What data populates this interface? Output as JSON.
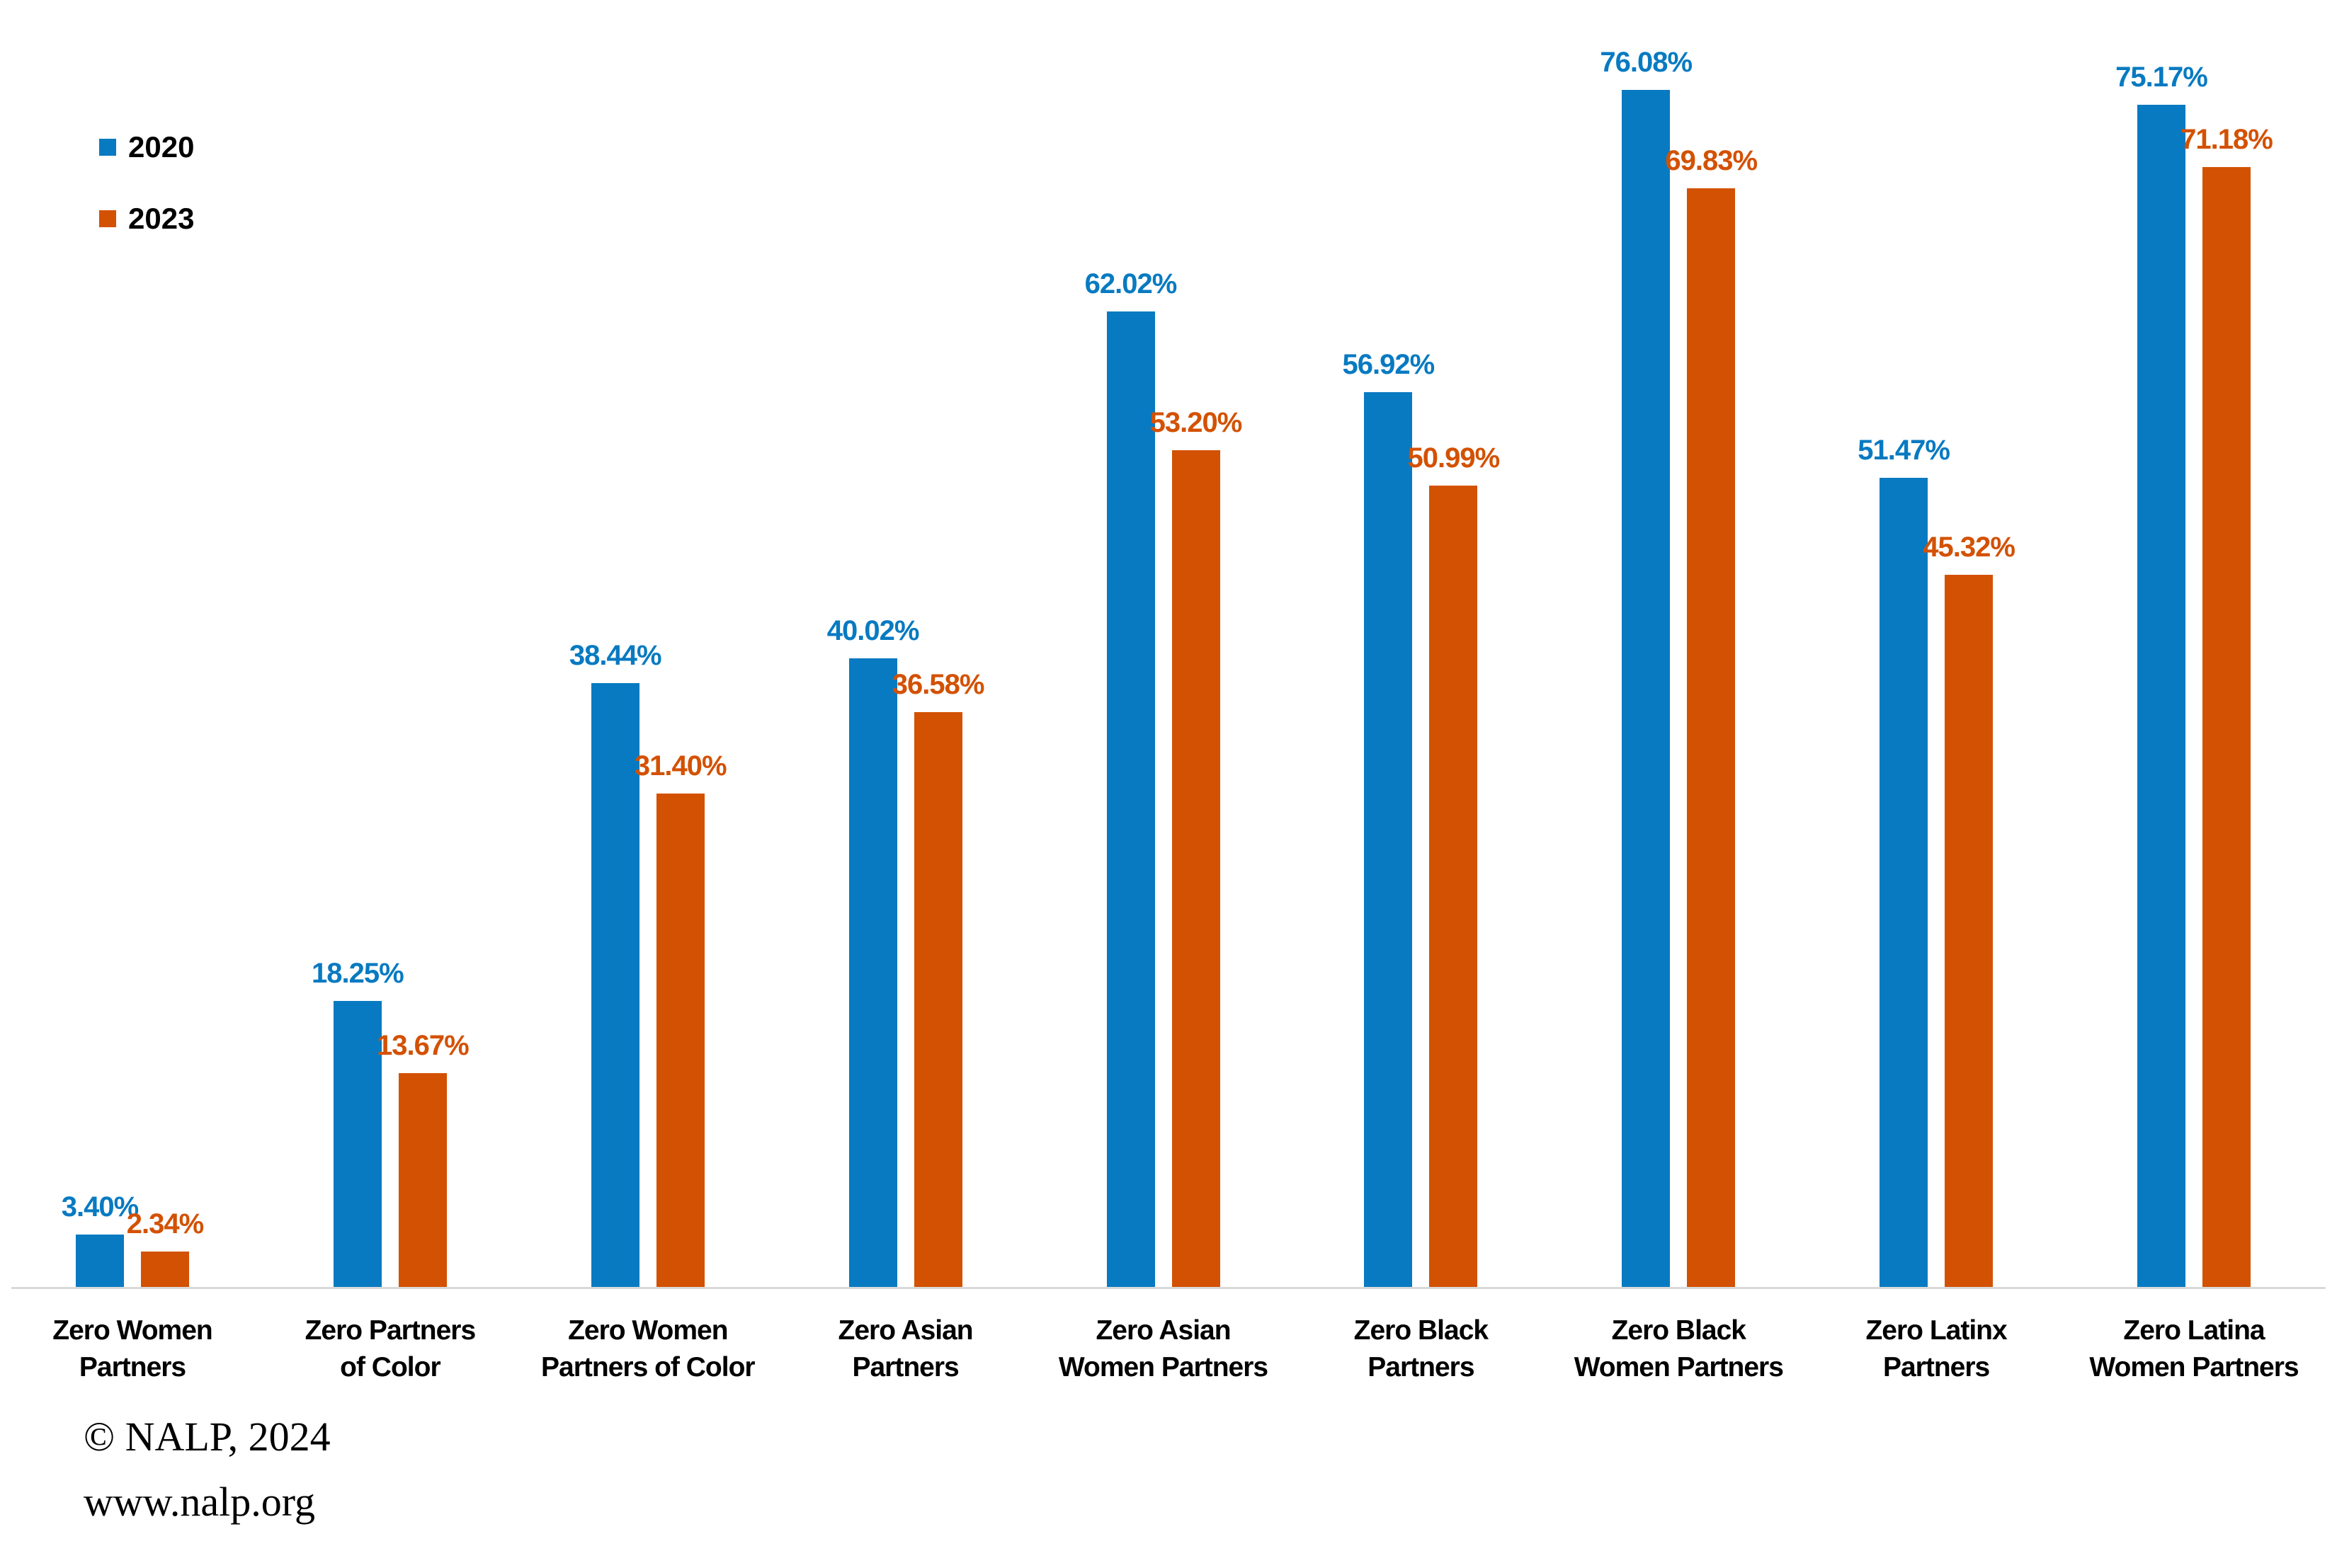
{
  "chart_data": {
    "type": "bar",
    "title": "",
    "xlabel": "",
    "ylabel": "",
    "ylim": [
      0,
      80
    ],
    "grid": false,
    "legend_position": "top-left",
    "value_label_format": "percent-2dp",
    "categories": [
      "Zero Women\nPartners",
      "Zero Partners\nof Color",
      "Zero Women\nPartners of Color",
      "Zero Asian\nPartners",
      "Zero Asian\nWomen Partners",
      "Zero Black\nPartners",
      "Zero Black\nWomen Partners",
      "Zero Latinx\nPartners",
      "Zero Latina\nWomen Partners"
    ],
    "series": [
      {
        "name": "2020",
        "color": "#087ac1",
        "values": [
          3.4,
          18.25,
          38.44,
          40.02,
          62.02,
          56.92,
          76.08,
          51.47,
          75.17
        ],
        "labels": [
          "3.40%",
          "18.25%",
          "38.44%",
          "40.02%",
          "62.02%",
          "56.92%",
          "76.08%",
          "51.47%",
          "75.17%"
        ]
      },
      {
        "name": "2023",
        "color": "#d35102",
        "values": [
          2.34,
          13.67,
          31.4,
          36.58,
          53.2,
          50.99,
          69.83,
          45.32,
          71.18
        ],
        "labels": [
          "2.34%",
          "13.67%",
          "31.40%",
          "36.58%",
          "53.20%",
          "50.99%",
          "69.83%",
          "45.32%",
          "71.18%"
        ]
      }
    ]
  },
  "legend": {
    "items": [
      {
        "label": "2020",
        "color": "#087ac1"
      },
      {
        "label": "2023",
        "color": "#d35102"
      }
    ]
  },
  "axis": {
    "line_color": "#d9d9d9"
  },
  "footer": {
    "copyright": "© NALP, 2024",
    "website": "www.nalp.org"
  }
}
